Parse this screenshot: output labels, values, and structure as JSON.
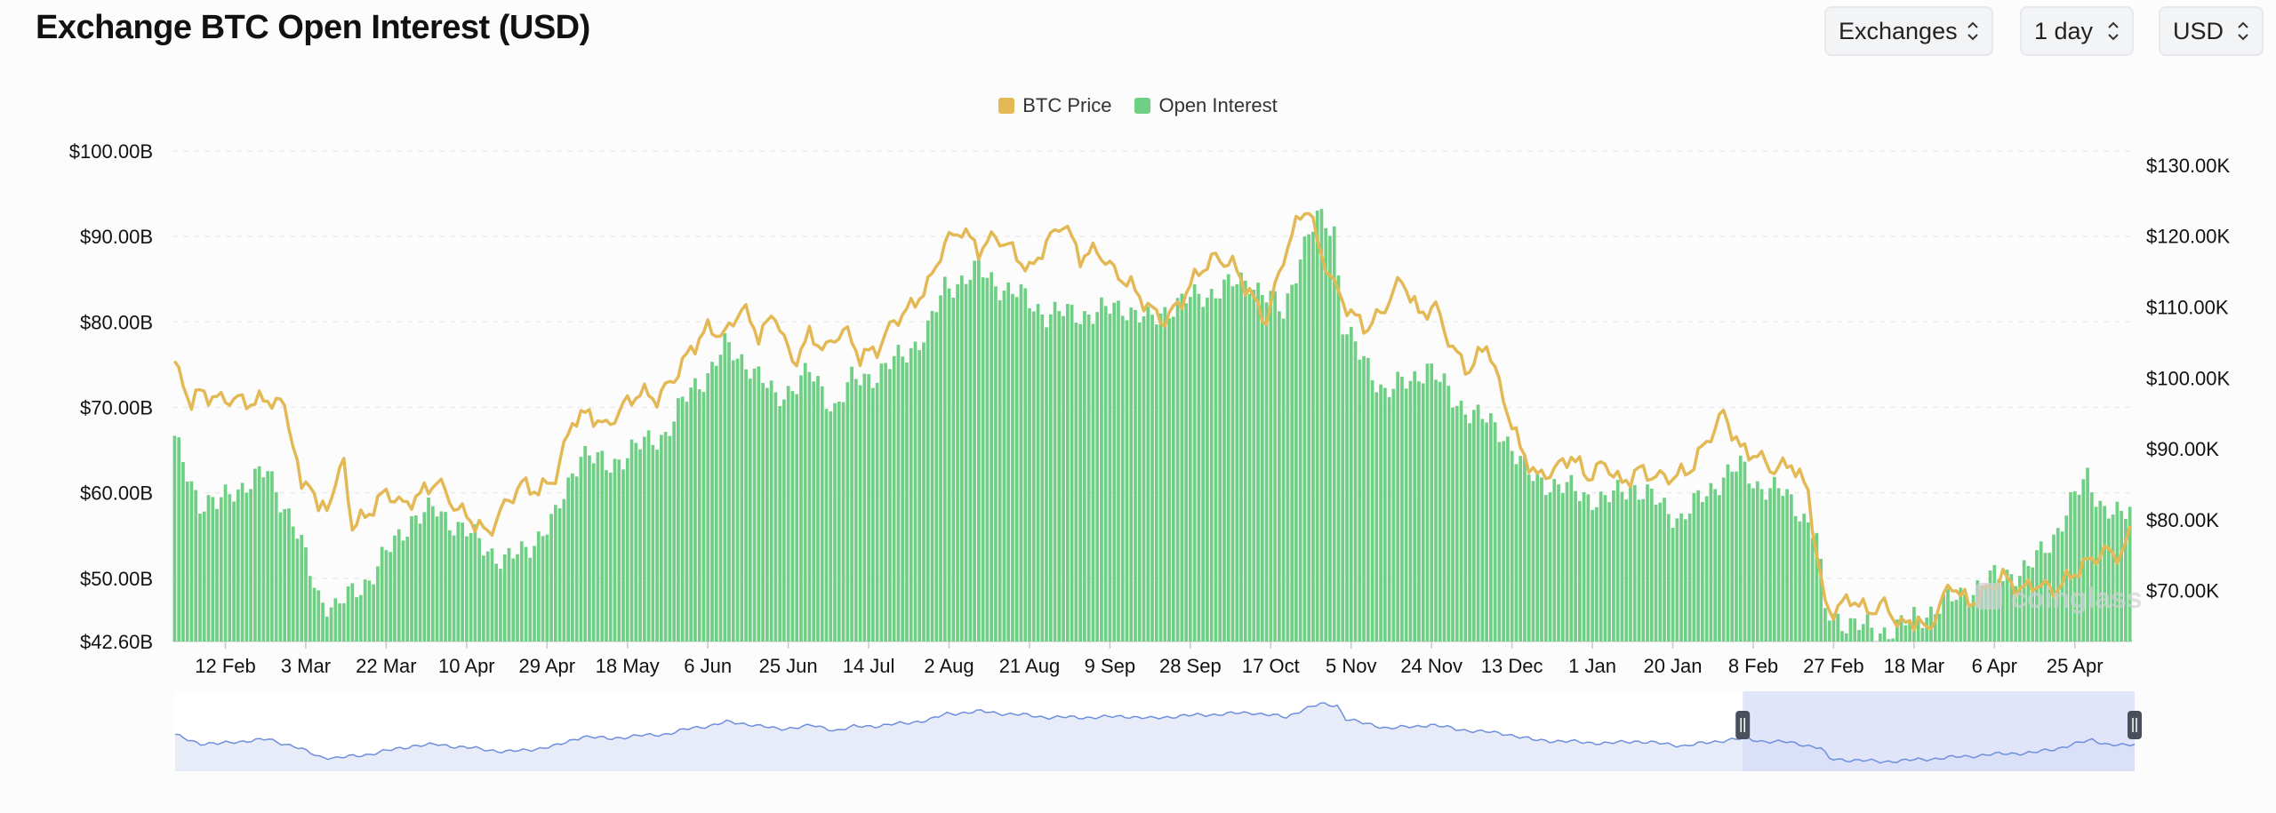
{
  "header": {
    "title": "Exchange BTC Open Interest (USD)"
  },
  "controls": {
    "exchanges_label": "Exchanges",
    "interval_label": "1 day",
    "currency_label": "USD"
  },
  "colors": {
    "price": "#e3b955",
    "open_interest": "#6fcf84",
    "navigator_line": "#6e8fde",
    "navigator_fill": "#e8ecf8",
    "navigator_selection": "#d5dcf7"
  },
  "icons": {
    "select_chevron": "chevron-up-down-icon",
    "navigator_handle": "drag-handle-icon"
  },
  "watermark": "coinglass",
  "chart_data": {
    "type": "bar+line",
    "title": "Exchange BTC Open Interest (USD)",
    "legend": [
      "BTC Price",
      "Open Interest"
    ],
    "legend_position": "top-center",
    "x_tick_labels": [
      "12 Feb",
      "3 Mar",
      "22 Mar",
      "10 Apr",
      "29 Apr",
      "18 May",
      "6 Jun",
      "25 Jun",
      "14 Jul",
      "2 Aug",
      "21 Aug",
      "9 Sep",
      "28 Sep",
      "17 Oct",
      "5 Nov",
      "24 Nov",
      "13 Dec",
      "1 Jan",
      "20 Jan",
      "8 Feb",
      "27 Feb",
      "18 Mar",
      "6 Apr",
      "25 Apr"
    ],
    "y_left": {
      "tick_labels": [
        "$42.60B",
        "$50.00B",
        "$60.00B",
        "$70.00B",
        "$80.00B",
        "$90.00B",
        "$100.00B"
      ],
      "range": [
        42.6,
        100
      ]
    },
    "y_right": {
      "tick_labels": [
        "$70.00K",
        "$80.00K",
        "$90.00K",
        "$100.00K",
        "$110.00K",
        "$120.00K",
        "$130.00K"
      ],
      "range": [
        62.8,
        132
      ]
    },
    "grid": true,
    "series": [
      {
        "name": "Open Interest",
        "axis": "left",
        "type": "bar",
        "unit": "USD billions",
        "keyframes": [
          [
            0,
            66
          ],
          [
            2,
            63.5
          ],
          [
            6,
            59
          ],
          [
            10,
            58.5
          ],
          [
            14,
            60.5
          ],
          [
            18,
            61.2
          ],
          [
            22,
            62.5
          ],
          [
            28,
            56.5
          ],
          [
            34,
            48
          ],
          [
            38,
            46.5
          ],
          [
            46,
            50
          ],
          [
            56,
            57
          ],
          [
            62,
            58
          ],
          [
            70,
            55
          ],
          [
            78,
            52
          ],
          [
            82,
            53
          ],
          [
            90,
            57
          ],
          [
            96,
            65
          ],
          [
            102,
            63
          ],
          [
            108,
            65
          ],
          [
            116,
            67
          ],
          [
            122,
            72
          ],
          [
            126,
            74
          ],
          [
            130,
            77
          ],
          [
            136,
            75
          ],
          [
            142,
            71
          ],
          [
            150,
            74
          ],
          [
            156,
            70
          ],
          [
            160,
            73
          ],
          [
            166,
            74
          ],
          [
            172,
            76
          ],
          [
            178,
            79
          ],
          [
            182,
            84
          ],
          [
            186,
            85
          ],
          [
            190,
            86
          ],
          [
            196,
            84
          ],
          [
            200,
            83
          ],
          [
            206,
            81
          ],
          [
            212,
            81
          ],
          [
            218,
            81
          ],
          [
            224,
            82
          ],
          [
            230,
            80
          ],
          [
            236,
            82
          ],
          [
            242,
            83
          ],
          [
            248,
            84
          ],
          [
            254,
            85
          ],
          [
            258,
            83
          ],
          [
            262,
            81
          ],
          [
            266,
            88
          ],
          [
            270,
            92
          ],
          [
            274,
            91
          ],
          [
            276,
            80
          ],
          [
            280,
            76
          ],
          [
            286,
            72
          ],
          [
            292,
            73
          ],
          [
            296,
            75
          ],
          [
            302,
            71
          ],
          [
            308,
            69
          ],
          [
            314,
            67
          ],
          [
            320,
            62
          ],
          [
            326,
            61
          ],
          [
            332,
            60
          ],
          [
            338,
            59
          ],
          [
            344,
            61
          ],
          [
            350,
            59
          ],
          [
            356,
            57
          ],
          [
            362,
            60
          ],
          [
            366,
            62
          ],
          [
            370,
            63
          ],
          [
            374,
            61
          ],
          [
            380,
            60
          ],
          [
            384,
            58
          ],
          [
            388,
            55
          ],
          [
            390,
            46
          ],
          [
            392,
            45.5
          ],
          [
            398,
            44.5
          ],
          [
            402,
            43.6
          ],
          [
            408,
            44.5
          ],
          [
            414,
            46
          ],
          [
            420,
            47.5
          ],
          [
            426,
            49
          ],
          [
            432,
            50.5
          ],
          [
            438,
            51
          ],
          [
            444,
            55
          ],
          [
            448,
            58.5
          ],
          [
            452,
            62
          ],
          [
            456,
            58
          ],
          [
            460,
            57
          ],
          [
            462,
            58.5
          ]
        ]
      },
      {
        "name": "BTC Price",
        "axis": "right",
        "type": "line",
        "unit": "USD thousands",
        "keyframes": [
          [
            0,
            102
          ],
          [
            2,
            99
          ],
          [
            4,
            96.5
          ],
          [
            6,
            98
          ],
          [
            10,
            97
          ],
          [
            14,
            97
          ],
          [
            18,
            96.5
          ],
          [
            22,
            97
          ],
          [
            26,
            96
          ],
          [
            28,
            91
          ],
          [
            30,
            84
          ],
          [
            32,
            86
          ],
          [
            34,
            81
          ],
          [
            36,
            82
          ],
          [
            40,
            88
          ],
          [
            42,
            79
          ],
          [
            46,
            81
          ],
          [
            50,
            84
          ],
          [
            54,
            82
          ],
          [
            58,
            83.5
          ],
          [
            62,
            85.5
          ],
          [
            66,
            82
          ],
          [
            70,
            80
          ],
          [
            74,
            78
          ],
          [
            78,
            82
          ],
          [
            82,
            85
          ],
          [
            86,
            84
          ],
          [
            90,
            86
          ],
          [
            94,
            94
          ],
          [
            98,
            95
          ],
          [
            102,
            93
          ],
          [
            106,
            96
          ],
          [
            110,
            98
          ],
          [
            114,
            97
          ],
          [
            118,
            100
          ],
          [
            122,
            104
          ],
          [
            126,
            107
          ],
          [
            130,
            106
          ],
          [
            134,
            110
          ],
          [
            138,
            106
          ],
          [
            142,
            109
          ],
          [
            146,
            102
          ],
          [
            150,
            106
          ],
          [
            154,
            104
          ],
          [
            158,
            107
          ],
          [
            162,
            103
          ],
          [
            166,
            104
          ],
          [
            170,
            108
          ],
          [
            174,
            110
          ],
          [
            178,
            113
          ],
          [
            182,
            119
          ],
          [
            186,
            121
          ],
          [
            190,
            118
          ],
          [
            194,
            120
          ],
          [
            198,
            118
          ],
          [
            202,
            115
          ],
          [
            206,
            119
          ],
          [
            210,
            122
          ],
          [
            214,
            117
          ],
          [
            218,
            118
          ],
          [
            222,
            115
          ],
          [
            226,
            113
          ],
          [
            230,
            110
          ],
          [
            234,
            108
          ],
          [
            238,
            111
          ],
          [
            242,
            115
          ],
          [
            246,
            117
          ],
          [
            250,
            116
          ],
          [
            254,
            112
          ],
          [
            258,
            108
          ],
          [
            262,
            117
          ],
          [
            266,
            123
          ],
          [
            268,
            124
          ],
          [
            270,
            119
          ],
          [
            274,
            113
          ],
          [
            278,
            109
          ],
          [
            282,
            107
          ],
          [
            286,
            110
          ],
          [
            290,
            114
          ],
          [
            294,
            109
          ],
          [
            298,
            110
          ],
          [
            302,
            104
          ],
          [
            306,
            101
          ],
          [
            310,
            105
          ],
          [
            314,
            97
          ],
          [
            318,
            90
          ],
          [
            322,
            86
          ],
          [
            326,
            87
          ],
          [
            330,
            89
          ],
          [
            334,
            86
          ],
          [
            338,
            88
          ],
          [
            342,
            85
          ],
          [
            346,
            87
          ],
          [
            350,
            86
          ],
          [
            354,
            86
          ],
          [
            358,
            87
          ],
          [
            362,
            91
          ],
          [
            366,
            95
          ],
          [
            370,
            90
          ],
          [
            374,
            89
          ],
          [
            378,
            87
          ],
          [
            382,
            88
          ],
          [
            386,
            84
          ],
          [
            388,
            75
          ],
          [
            390,
            68
          ],
          [
            392,
            67
          ],
          [
            396,
            69
          ],
          [
            400,
            67
          ],
          [
            404,
            68
          ],
          [
            408,
            65
          ],
          [
            412,
            66
          ],
          [
            414,
            64
          ],
          [
            418,
            69
          ],
          [
            420,
            71
          ],
          [
            424,
            68
          ],
          [
            428,
            70
          ],
          [
            432,
            72
          ],
          [
            436,
            70
          ],
          [
            440,
            71
          ],
          [
            444,
            70
          ],
          [
            448,
            72
          ],
          [
            452,
            74
          ],
          [
            456,
            75.5
          ],
          [
            460,
            75
          ],
          [
            462,
            78
          ]
        ]
      }
    ],
    "navigator": {
      "selection_from_fraction": 0.8,
      "selection_to_fraction": 1.0
    }
  }
}
